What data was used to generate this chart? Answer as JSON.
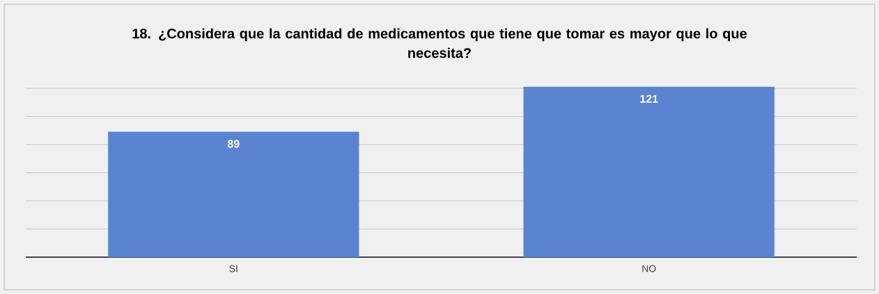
{
  "chart_data": {
    "type": "bar",
    "title": "18. ¿Considera que la cantidad de medicamentos que tiene que tomar es mayor que lo que necesita?",
    "categories": [
      "SI",
      "NO"
    ],
    "values": [
      89,
      121
    ],
    "color": "#5b84d0",
    "grid": "y",
    "tick_labels": "x",
    "data_labels": true
  }
}
